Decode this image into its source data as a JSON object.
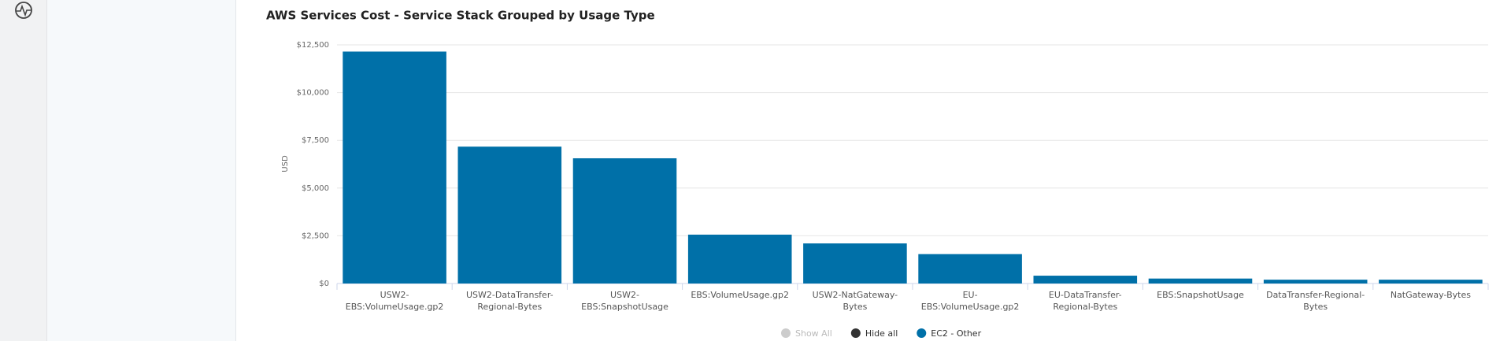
{
  "chart_data": {
    "type": "bar",
    "title": "AWS Services Cost - Service Stack Grouped by Usage Type",
    "y_label": "USD",
    "categories": [
      "USW2-EBS:VolumeUsage.gp2",
      "USW2-DataTransfer-Regional-Bytes",
      "USW2-EBS:SnapshotUsage",
      "EBS:VolumeUsage.gp2",
      "USW2-NatGateway-Bytes",
      "EU-EBS:VolumeUsage.gp2",
      "EU-DataTransfer-Regional-Bytes",
      "EBS:SnapshotUsage",
      "DataTransfer-Regional-Bytes",
      "NatGateway-Bytes"
    ],
    "series": [
      {
        "name": "EC2 - Other",
        "color": "#0070a8",
        "values": [
          12150,
          7170,
          6560,
          2560,
          2100,
          1540,
          410,
          260,
          200,
          200
        ]
      }
    ],
    "ylim": [
      0,
      12500
    ],
    "yticks": [
      {
        "value": 0,
        "label": "$0"
      },
      {
        "value": 2500,
        "label": "$2,500"
      },
      {
        "value": 5000,
        "label": "$5,000"
      },
      {
        "value": 7500,
        "label": "$7,500"
      },
      {
        "value": 10000,
        "label": "$10,000"
      },
      {
        "value": 12500,
        "label": "$12,500"
      }
    ],
    "grid": true,
    "legend_controls": [
      "Show All",
      "Hide all"
    ]
  }
}
